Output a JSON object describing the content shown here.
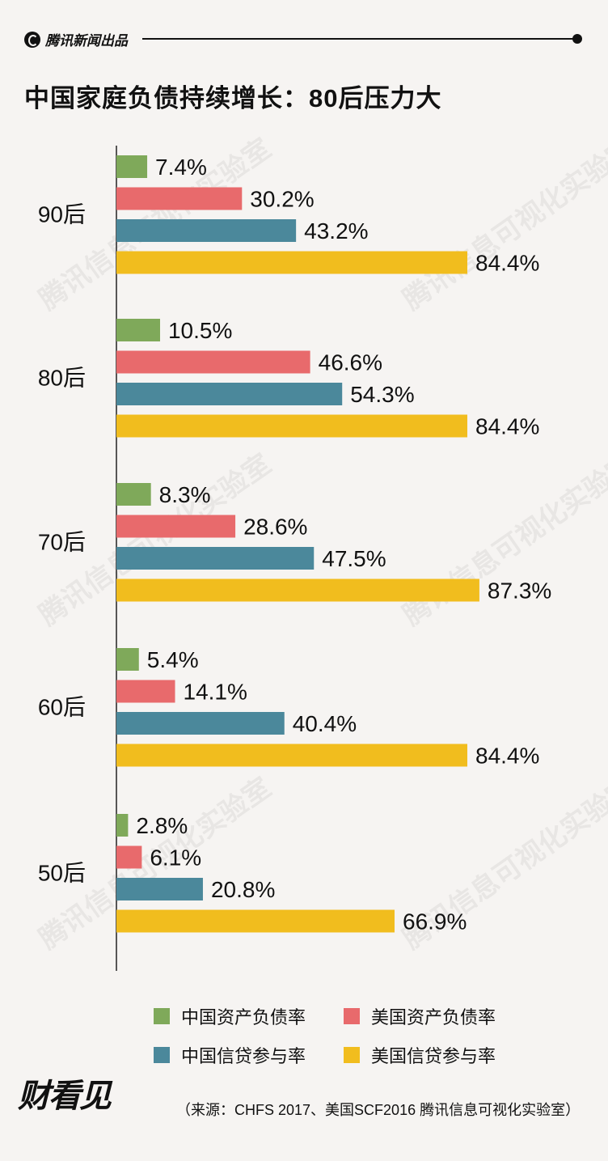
{
  "brand": {
    "name": "腾讯新闻出品"
  },
  "title": "中国家庭负债持续增长：80后压力大",
  "watermark": "腾讯信息可视化实验室",
  "footer_logo": "财看见",
  "source": "（来源：CHFS 2017、美国SCF2016 腾讯信息可视化实验室）",
  "chart_data": {
    "type": "bar",
    "orientation": "horizontal",
    "categories": [
      "90后",
      "80后",
      "70后",
      "60后",
      "50后"
    ],
    "series": [
      {
        "name": "中国资产负债率",
        "color": "#7fa95a",
        "values": [
          7.4,
          10.5,
          8.3,
          5.4,
          2.8
        ]
      },
      {
        "name": "美国资产负债率",
        "color": "#e86a6c",
        "values": [
          30.2,
          46.6,
          28.6,
          14.1,
          6.1
        ]
      },
      {
        "name": "中国信贷参与率",
        "color": "#4b889b",
        "values": [
          43.2,
          54.3,
          47.5,
          40.4,
          20.8
        ]
      },
      {
        "name": "美国信贷参与率",
        "color": "#f1bd1e",
        "values": [
          84.4,
          84.4,
          87.3,
          84.4,
          66.9
        ]
      }
    ],
    "value_suffix": "%",
    "xlim": [
      0,
      100
    ],
    "grid": false,
    "legend": "bottom"
  }
}
